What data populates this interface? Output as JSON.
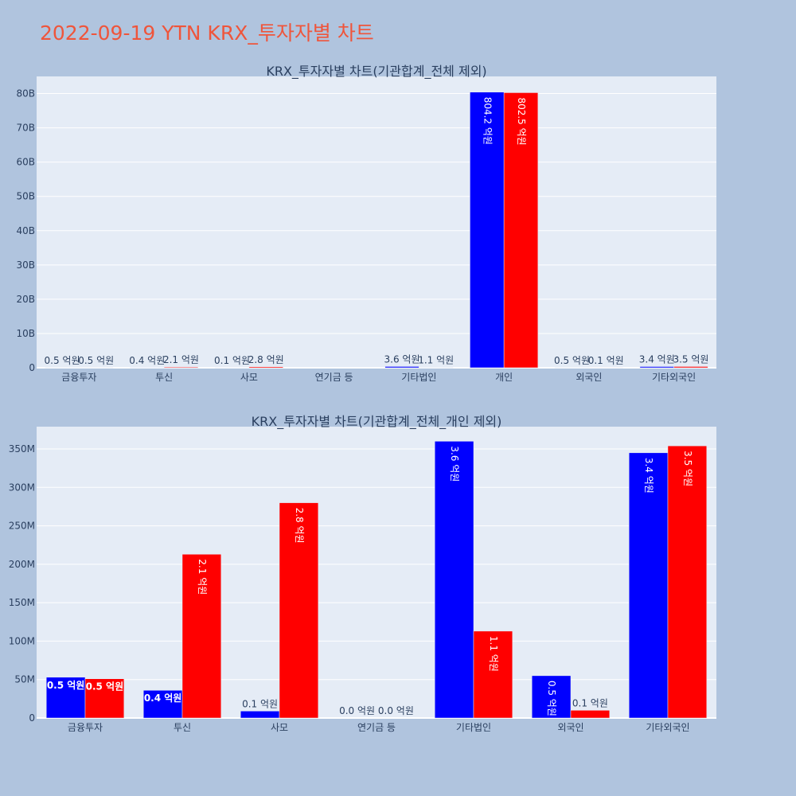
{
  "page_title": "2022-09-19 YTN KRX_투자자별 차트",
  "colors": {
    "background": "#b0c4de",
    "plot_bg": "#e5ecf6",
    "title": "#ef553b",
    "text": "#2a3f5f",
    "series_a": "#0000ff",
    "series_b": "#ff0000"
  },
  "chart_data": [
    {
      "type": "bar",
      "title": "KRX_투자자별 차트(기관합계_전체 제외)",
      "categories": [
        "금융투자",
        "투신",
        "사모",
        "연기금 등",
        "기타법인",
        "개인",
        "외국인",
        "기타외국인"
      ],
      "series": [
        {
          "values": [
            53000000,
            36000000,
            9000000,
            0,
            360000000,
            80420000000,
            55000000,
            345000000
          ],
          "labels": [
            "0.5 억원",
            "0.4 억원",
            "0.1 억원",
            "",
            "3.6 억원",
            "804.2 억원",
            "0.5 억원",
            "3.4 억원"
          ]
        },
        {
          "values": [
            51000000,
            213000000,
            280000000,
            0,
            113000000,
            80250000000,
            10000000,
            354000000
          ],
          "labels": [
            "0.5 억원",
            "2.1 억원",
            "2.8 억원",
            "",
            "1.1 억원",
            "802.5 억원",
            "0.1 억원",
            "3.5 억원"
          ]
        }
      ],
      "yticks": [
        "0",
        "10B",
        "20B",
        "30B",
        "40B",
        "50B",
        "60B",
        "70B",
        "80B"
      ],
      "ylim": [
        0,
        85000000000
      ],
      "grid": true,
      "legend": "none"
    },
    {
      "type": "bar",
      "title": "KRX_투자자별 차트(기관합계_전체_개인 제외)",
      "categories": [
        "금융투자",
        "투신",
        "사모",
        "연기금 등",
        "기타법인",
        "외국인",
        "기타외국인"
      ],
      "series": [
        {
          "values": [
            53000000,
            36000000,
            9000000,
            0,
            360000000,
            55000000,
            345000000
          ],
          "labels": [
            "0.5 억원",
            "0.4 억원",
            "0.1 억원",
            "0.0 억원",
            "3.6 억원",
            "0.5 억원",
            "3.4 억원"
          ]
        },
        {
          "values": [
            51000000,
            213000000,
            280000000,
            0,
            113000000,
            10000000,
            354000000
          ],
          "labels": [
            "0.5 억원",
            "2.1 억원",
            "2.8 억원",
            "0.0 억원",
            "1.1 억원",
            "0.1 억원",
            "3.5 억원"
          ]
        }
      ],
      "yticks": [
        "0",
        "50M",
        "100M",
        "150M",
        "200M",
        "250M",
        "300M",
        "350M"
      ],
      "ylim": [
        0,
        379000000
      ],
      "grid": true,
      "legend": "none"
    }
  ]
}
